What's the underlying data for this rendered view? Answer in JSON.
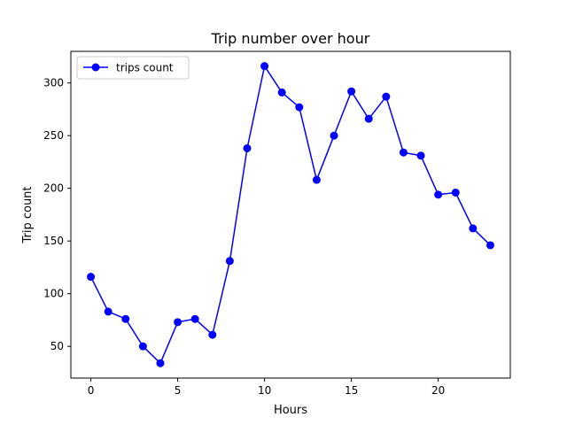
{
  "chart_data": {
    "type": "line",
    "title": "Trip number over hour",
    "xlabel": "Hours",
    "ylabel": "Trip count",
    "xlim": [
      -1.15,
      24.15
    ],
    "ylim": [
      19.9,
      330
    ],
    "xticks": [
      0,
      5,
      10,
      15,
      20
    ],
    "yticks": [
      50,
      100,
      150,
      200,
      250,
      300
    ],
    "grid": false,
    "legend": "top-left",
    "color": "#0000ff",
    "marker": "circle",
    "series": [
      {
        "name": "trips count",
        "x": [
          0,
          1,
          2,
          3,
          4,
          5,
          6,
          7,
          8,
          9,
          10,
          11,
          12,
          13,
          14,
          15,
          16,
          17,
          18,
          19,
          20,
          21,
          22,
          23
        ],
        "y": [
          116,
          83,
          76,
          50,
          34,
          73,
          76,
          61,
          131,
          238,
          316,
          291,
          277,
          208,
          250,
          292,
          266,
          287,
          234,
          231,
          194,
          196,
          162,
          146
        ]
      }
    ]
  }
}
